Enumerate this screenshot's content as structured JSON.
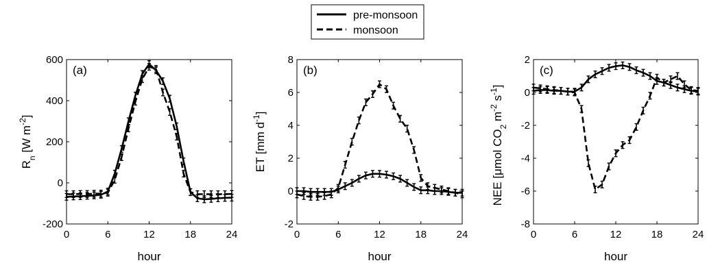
{
  "legend": {
    "entries": [
      {
        "label": "pre-monsoon",
        "style": "solid"
      },
      {
        "label": "monsoon",
        "style": "dashed"
      }
    ]
  },
  "chart_data": [
    {
      "type": "line",
      "panel_label": "(a)",
      "xlabel": "hour",
      "ylabel_main": "R",
      "ylabel_sub": "n",
      "ylabel_unit": " [W m",
      "ylabel_unit_sup": "-2",
      "ylabel_unit_end": "]",
      "xlim": [
        0,
        24
      ],
      "ylim": [
        -200,
        600
      ],
      "xticks": [
        "0",
        "6",
        "12",
        "18",
        "24"
      ],
      "yticks": [
        "-200",
        "0",
        "200",
        "400",
        "600"
      ],
      "xtick_values": [
        0,
        6,
        12,
        18,
        24
      ],
      "ytick_values": [
        -200,
        0,
        200,
        400,
        600
      ],
      "series": [
        {
          "name": "pre-monsoon",
          "style": "solid",
          "x": [
            0,
            1,
            2,
            3,
            4,
            5,
            6,
            7,
            8,
            9,
            10,
            11,
            12,
            13,
            14,
            15,
            16,
            17,
            18,
            19,
            20,
            21,
            22,
            23,
            24
          ],
          "y": [
            -68,
            -66,
            -65,
            -63,
            -61,
            -58,
            -42,
            45,
            165,
            300,
            425,
            530,
            578,
            548,
            495,
            410,
            275,
            105,
            -45,
            -75,
            -80,
            -78,
            -75,
            -73,
            -72
          ]
        },
        {
          "name": "monsoon",
          "style": "dashed",
          "x": [
            0,
            1,
            2,
            3,
            4,
            5,
            6,
            7,
            8,
            9,
            10,
            11,
            12,
            13,
            14,
            15,
            16,
            17,
            18,
            19,
            20,
            21,
            22,
            23,
            24
          ],
          "y": [
            -55,
            -55,
            -54,
            -54,
            -53,
            -52,
            -48,
            15,
            125,
            265,
            395,
            505,
            565,
            555,
            440,
            345,
            225,
            45,
            -45,
            -55,
            -55,
            -55,
            -55,
            -55,
            -54
          ]
        }
      ]
    },
    {
      "type": "line",
      "panel_label": "(b)",
      "xlabel": "hour",
      "ylabel_main": "ET [mm d",
      "ylabel_sup": "-1",
      "ylabel_end": "]",
      "xlim": [
        0,
        24
      ],
      "ylim": [
        -2,
        8
      ],
      "xticks": [
        "0",
        "6",
        "12",
        "18",
        "24"
      ],
      "yticks": [
        "-2",
        "0",
        "2",
        "4",
        "6",
        "8"
      ],
      "xtick_values": [
        0,
        6,
        12,
        18,
        24
      ],
      "ytick_values": [
        -2,
        0,
        2,
        4,
        6,
        8
      ],
      "series": [
        {
          "name": "pre-monsoon",
          "style": "solid",
          "x": [
            0,
            1,
            2,
            3,
            4,
            5,
            6,
            7,
            8,
            9,
            10,
            11,
            12,
            13,
            14,
            15,
            16,
            17,
            18,
            19,
            20,
            21,
            22,
            23,
            24
          ],
          "y": [
            0.0,
            0.0,
            -0.05,
            -0.05,
            -0.05,
            -0.05,
            0.1,
            0.3,
            0.5,
            0.75,
            0.95,
            1.05,
            1.05,
            1.0,
            0.9,
            0.75,
            0.5,
            0.25,
            0.05,
            0.05,
            0.0,
            0.0,
            -0.05,
            -0.1,
            -0.1
          ]
        },
        {
          "name": "monsoon",
          "style": "dashed",
          "x": [
            0,
            1,
            2,
            3,
            4,
            5,
            6,
            7,
            8,
            9,
            10,
            11,
            12,
            13,
            14,
            15,
            16,
            17,
            18,
            19,
            20,
            21,
            22,
            23,
            24
          ],
          "y": [
            -0.2,
            -0.3,
            -0.35,
            -0.35,
            -0.3,
            -0.2,
            0.2,
            1.6,
            3.0,
            4.3,
            5.4,
            5.9,
            6.5,
            6.2,
            5.2,
            4.4,
            3.8,
            2.5,
            0.8,
            0.3,
            0.2,
            0.1,
            0.0,
            -0.1,
            -0.2
          ]
        }
      ]
    },
    {
      "type": "line",
      "panel_label": "(c)",
      "xlabel": "hour",
      "ylabel_main": "NEE [",
      "ylabel_mu": "μ",
      "ylabel_mid": "mol CO",
      "ylabel_sub": "2",
      "ylabel_m": " m",
      "ylabel_sup1": "-2",
      "ylabel_s": " s",
      "ylabel_sup2": "-1",
      "ylabel_end": "]",
      "xlim": [
        0,
        24
      ],
      "ylim": [
        -8,
        2
      ],
      "xticks": [
        "0",
        "6",
        "12",
        "18",
        "24"
      ],
      "yticks": [
        "-8",
        "-6",
        "-4",
        "-2",
        "0",
        "2"
      ],
      "xtick_values": [
        0,
        6,
        12,
        18,
        24
      ],
      "ytick_values": [
        -8,
        -6,
        -4,
        -2,
        0,
        2
      ],
      "series": [
        {
          "name": "pre-monsoon",
          "style": "solid",
          "x": [
            0,
            1,
            2,
            3,
            4,
            5,
            6,
            7,
            8,
            9,
            10,
            11,
            12,
            13,
            14,
            15,
            16,
            17,
            18,
            19,
            20,
            21,
            22,
            23,
            24
          ],
          "y": [
            0.1,
            0.15,
            0.15,
            0.1,
            0.1,
            0.05,
            0.05,
            0.3,
            0.8,
            1.1,
            1.3,
            1.5,
            1.6,
            1.65,
            1.55,
            1.35,
            1.2,
            1.0,
            0.7,
            0.6,
            0.45,
            0.3,
            0.2,
            0.1,
            0.05
          ]
        },
        {
          "name": "monsoon",
          "style": "dashed",
          "x": [
            0,
            1,
            2,
            3,
            4,
            5,
            6,
            7,
            8,
            9,
            10,
            11,
            12,
            13,
            14,
            15,
            16,
            17,
            18,
            19,
            20,
            21,
            22,
            23,
            24
          ],
          "y": [
            0.3,
            0.25,
            0.2,
            0.15,
            0.1,
            0.05,
            0.0,
            -1.0,
            -4.3,
            -5.9,
            -5.6,
            -4.5,
            -3.7,
            -3.2,
            -2.9,
            -2.1,
            -1.1,
            -0.2,
            0.9,
            0.6,
            0.8,
            1.0,
            0.5,
            0.15,
            0.1
          ]
        }
      ]
    }
  ]
}
